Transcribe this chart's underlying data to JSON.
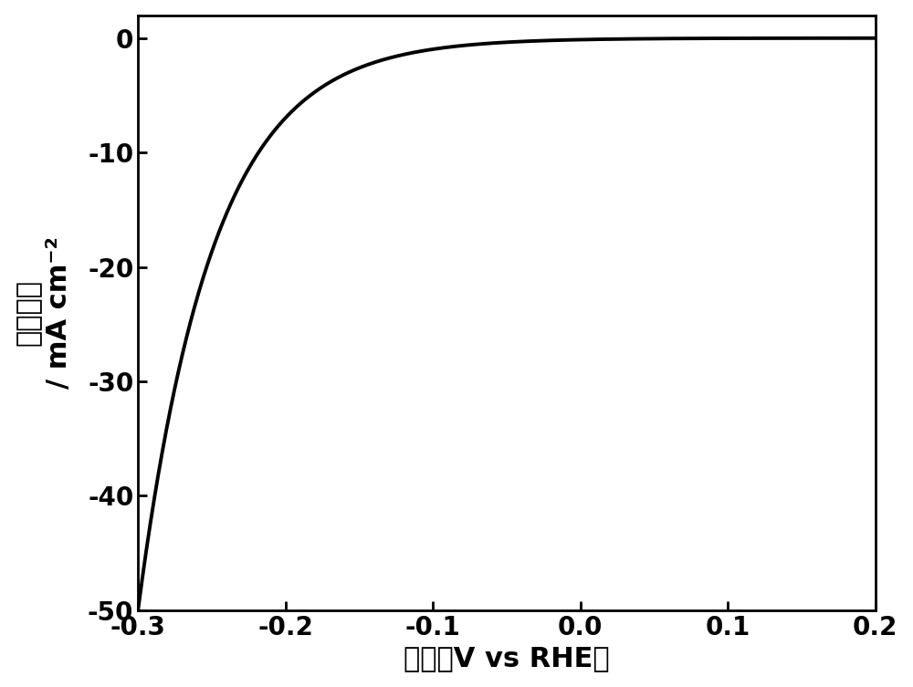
{
  "xlabel": "电位（V vs RHE）",
  "ylabel_chinese": "电流密度",
  "ylabel_units": "/ mA cm⁻²",
  "xlim": [
    -0.3,
    0.2
  ],
  "ylim": [
    -50,
    2
  ],
  "yticks": [
    0,
    -10,
    -20,
    -30,
    -40,
    -50
  ],
  "xticks": [
    -0.3,
    -0.2,
    -0.1,
    0.0,
    0.1,
    0.2
  ],
  "xtick_labels": [
    "-0.3",
    "-0.2",
    "-0.1",
    "0.0",
    "0.1",
    "0.2"
  ],
  "ytick_labels": [
    "0",
    "-10",
    "-20",
    "-30",
    "-40",
    "-50"
  ],
  "line_color": "#000000",
  "line_width": 2.8,
  "background_color": "#ffffff",
  "xlabel_fontsize": 22,
  "ylabel_fontsize": 22,
  "tick_fontsize": 20,
  "curve_k": 35.0,
  "curve_x0": -0.255,
  "curve_jlim": -50.0
}
